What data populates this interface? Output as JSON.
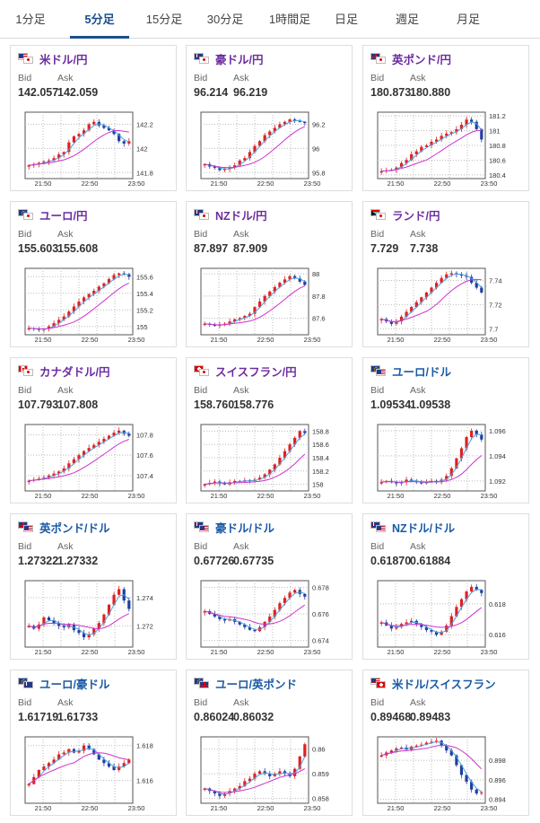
{
  "tabs": [
    "1分足",
    "5分足",
    "15分足",
    "30分足",
    "1時間足",
    "日足",
    "週足",
    "月足"
  ],
  "active_tab": 1,
  "labels": {
    "bid": "Bid",
    "ask": "Ask"
  },
  "colors": {
    "accent": "#1a4f8c",
    "jpy_pair": "#6b2ca0",
    "other_pair": "#1a5aa6",
    "up": "#e02020",
    "down": "#1f3f9f",
    "ma_short": "#4aa0e0",
    "ma_long": "#cc33cc"
  },
  "cards": [
    {
      "pair": "米ドル/円",
      "group": "jpy",
      "flags": [
        "US",
        "JP"
      ],
      "bid": "142.057",
      "ask": "142.059",
      "yticks": [
        "142.2",
        "142",
        "141.8"
      ],
      "ylim": [
        141.75,
        142.3
      ],
      "xticks": [
        "21:50",
        "22:50",
        "23:50"
      ],
      "closes": [
        141.86,
        141.87,
        141.88,
        141.89,
        141.9,
        141.92,
        141.95,
        141.97,
        142.05,
        142.1,
        142.12,
        142.15,
        142.2,
        142.22,
        142.19,
        142.17,
        142.15,
        142.12,
        142.06,
        142.04,
        142.06
      ]
    },
    {
      "pair": "豪ドル/円",
      "group": "jpy",
      "flags": [
        "AU",
        "JP"
      ],
      "bid": "96.214",
      "ask": "96.219",
      "yticks": [
        "96.2",
        "96",
        "95.8"
      ],
      "ylim": [
        95.75,
        96.3
      ],
      "xticks": [
        "21:50",
        "22:50",
        "23:50"
      ],
      "closes": [
        95.87,
        95.85,
        95.84,
        95.82,
        95.83,
        95.84,
        95.86,
        95.9,
        95.92,
        95.97,
        96.02,
        96.06,
        96.11,
        96.14,
        96.17,
        96.2,
        96.22,
        96.24,
        96.23,
        96.22,
        96.21
      ]
    },
    {
      "pair": "英ポンド/円",
      "group": "jpy",
      "flags": [
        "GB",
        "JP"
      ],
      "bid": "180.873",
      "ask": "180.880",
      "yticks": [
        "181.2",
        "181",
        "180.8",
        "180.6",
        "180.4"
      ],
      "ylim": [
        180.35,
        181.25
      ],
      "xticks": [
        "21:50",
        "22:50",
        "23:50"
      ],
      "closes": [
        180.45,
        180.46,
        180.47,
        180.5,
        180.56,
        180.6,
        180.68,
        180.72,
        180.78,
        180.8,
        180.85,
        180.88,
        180.93,
        180.96,
        180.98,
        181.02,
        181.08,
        181.15,
        181.12,
        181.02,
        180.88
      ]
    },
    {
      "pair": "ユーロ/円",
      "group": "jpy",
      "flags": [
        "EU",
        "JP"
      ],
      "bid": "155.603",
      "ask": "155.608",
      "yticks": [
        "155.6",
        "155.4",
        "155.2",
        "155"
      ],
      "ylim": [
        154.9,
        155.7
      ],
      "xticks": [
        "21:50",
        "22:50",
        "23:50"
      ],
      "closes": [
        154.98,
        154.97,
        154.96,
        154.97,
        155.0,
        155.04,
        155.08,
        155.12,
        155.18,
        155.24,
        155.3,
        155.35,
        155.39,
        155.43,
        155.48,
        155.52,
        155.57,
        155.62,
        155.64,
        155.63,
        155.6
      ]
    },
    {
      "pair": "NZドル/円",
      "group": "jpy",
      "flags": [
        "NZ",
        "JP"
      ],
      "bid": "87.897",
      "ask": "87.909",
      "yticks": [
        "88",
        "87.8",
        "87.6"
      ],
      "ylim": [
        87.45,
        88.05
      ],
      "xticks": [
        "21:50",
        "22:50",
        "23:50"
      ],
      "closes": [
        87.55,
        87.54,
        87.53,
        87.54,
        87.55,
        87.57,
        87.59,
        87.6,
        87.62,
        87.64,
        87.7,
        87.75,
        87.8,
        87.84,
        87.88,
        87.92,
        87.95,
        87.98,
        87.96,
        87.93,
        87.9
      ]
    },
    {
      "pair": "ランド/円",
      "group": "jpy",
      "flags": [
        "ZA",
        "JP"
      ],
      "bid": "7.729",
      "ask": "7.738",
      "yticks": [
        "7.74",
        "7.72",
        "7.7"
      ],
      "ylim": [
        7.695,
        7.75
      ],
      "xticks": [
        "21:50",
        "22:50",
        "23:50"
      ],
      "closes": [
        7.708,
        7.706,
        7.704,
        7.706,
        7.71,
        7.714,
        7.718,
        7.722,
        7.726,
        7.73,
        7.734,
        7.738,
        7.742,
        7.745,
        7.746,
        7.745,
        7.744,
        7.743,
        7.738,
        7.734,
        7.73
      ]
    },
    {
      "pair": "カナダドル/円",
      "group": "jpy",
      "flags": [
        "CA",
        "JP"
      ],
      "bid": "107.793",
      "ask": "107.808",
      "yticks": [
        "107.8",
        "107.6",
        "107.4"
      ],
      "ylim": [
        107.25,
        107.9
      ],
      "xticks": [
        "21:50",
        "22:50",
        "23:50"
      ],
      "closes": [
        107.35,
        107.36,
        107.37,
        107.38,
        107.4,
        107.42,
        107.44,
        107.47,
        107.52,
        107.56,
        107.6,
        107.64,
        107.67,
        107.7,
        107.73,
        107.76,
        107.79,
        107.82,
        107.84,
        107.81,
        107.79
      ]
    },
    {
      "pair": "スイスフラン/円",
      "group": "jpy",
      "flags": [
        "CH",
        "JP"
      ],
      "bid": "158.760",
      "ask": "158.776",
      "yticks": [
        "158.8",
        "158.6",
        "158.4",
        "158.2",
        "158"
      ],
      "ylim": [
        157.9,
        158.9
      ],
      "xticks": [
        "21:50",
        "22:50",
        "23:50"
      ],
      "closes": [
        158.0,
        158.02,
        158.04,
        158.02,
        158.0,
        158.03,
        158.05,
        158.04,
        158.06,
        158.05,
        158.07,
        158.1,
        158.15,
        158.22,
        158.3,
        158.4,
        158.5,
        158.6,
        158.7,
        158.8,
        158.77
      ]
    },
    {
      "pair": "ユーロ/ドル",
      "group": "oth",
      "flags": [
        "EU",
        "US"
      ],
      "bid": "1.09534",
      "ask": "1.09538",
      "yticks": [
        "1.096",
        "1.094",
        "1.092"
      ],
      "ylim": [
        1.0912,
        1.0965
      ],
      "xticks": [
        "21:50",
        "22:50",
        "23:50"
      ],
      "closes": [
        1.0919,
        1.092,
        1.0919,
        1.0918,
        1.0919,
        1.0921,
        1.092,
        1.0919,
        1.0918,
        1.0919,
        1.092,
        1.0919,
        1.0921,
        1.0924,
        1.093,
        1.0938,
        1.0946,
        1.0955,
        1.096,
        1.0957,
        1.0953
      ]
    },
    {
      "pair": "英ポンド/ドル",
      "group": "oth",
      "flags": [
        "GB",
        "US"
      ],
      "bid": "1.27322",
      "ask": "1.27332",
      "yticks": [
        "1.274",
        "1.272"
      ],
      "ylim": [
        1.2705,
        1.2752
      ],
      "xticks": [
        "21:50",
        "22:50",
        "23:50"
      ],
      "closes": [
        1.272,
        1.2718,
        1.2721,
        1.2726,
        1.2724,
        1.2722,
        1.272,
        1.2719,
        1.2721,
        1.2717,
        1.2715,
        1.2712,
        1.2714,
        1.2718,
        1.2722,
        1.2728,
        1.2735,
        1.2742,
        1.2746,
        1.2738,
        1.2732
      ]
    },
    {
      "pair": "豪ドル/ドル",
      "group": "oth",
      "flags": [
        "AU",
        "US"
      ],
      "bid": "0.67726",
      "ask": "0.67735",
      "yticks": [
        "0.678",
        "0.676",
        "0.674"
      ],
      "ylim": [
        0.6735,
        0.6785
      ],
      "xticks": [
        "21:50",
        "22:50",
        "23:50"
      ],
      "closes": [
        0.6762,
        0.676,
        0.6758,
        0.6756,
        0.6755,
        0.6756,
        0.6754,
        0.6752,
        0.675,
        0.6748,
        0.6747,
        0.675,
        0.6754,
        0.6758,
        0.6763,
        0.6768,
        0.6772,
        0.6776,
        0.6778,
        0.6775,
        0.6773
      ]
    },
    {
      "pair": "NZドル/ドル",
      "group": "oth",
      "flags": [
        "NZ",
        "US"
      ],
      "bid": "0.61870",
      "ask": "0.61884",
      "yticks": [
        "0.618",
        "0.616"
      ],
      "ylim": [
        0.6152,
        0.6195
      ],
      "xticks": [
        "21:50",
        "22:50",
        "23:50"
      ],
      "closes": [
        0.6168,
        0.6166,
        0.6164,
        0.6165,
        0.6167,
        0.6168,
        0.6169,
        0.6167,
        0.6165,
        0.6163,
        0.6162,
        0.616,
        0.6162,
        0.6166,
        0.6172,
        0.6178,
        0.6183,
        0.6188,
        0.6191,
        0.6189,
        0.6187
      ]
    },
    {
      "pair": "ユーロ/豪ドル",
      "group": "oth",
      "flags": [
        "EU",
        "AU"
      ],
      "bid": "1.61719",
      "ask": "1.61733",
      "yticks": [
        "1.618",
        "1.616"
      ],
      "ylim": [
        1.6147,
        1.6185
      ],
      "xticks": [
        "21:50",
        "22:50",
        "23:50"
      ],
      "closes": [
        1.6158,
        1.6162,
        1.6166,
        1.6168,
        1.617,
        1.6172,
        1.6175,
        1.6176,
        1.6178,
        1.6176,
        1.6177,
        1.618,
        1.6178,
        1.6175,
        1.6172,
        1.617,
        1.6168,
        1.6166,
        1.6168,
        1.617,
        1.6172
      ]
    },
    {
      "pair": "ユーロ/英ポンド",
      "group": "oth",
      "flags": [
        "EU",
        "GB"
      ],
      "bid": "0.86024",
      "ask": "0.86032",
      "yticks": [
        "0.86",
        "0.859",
        "0.858"
      ],
      "ylim": [
        0.8578,
        0.8605
      ],
      "xticks": [
        "21:50",
        "22:50",
        "23:50"
      ],
      "closes": [
        0.8584,
        0.8583,
        0.8582,
        0.8581,
        0.8582,
        0.8583,
        0.8584,
        0.8585,
        0.8587,
        0.8588,
        0.859,
        0.8591,
        0.859,
        0.8589,
        0.859,
        0.8591,
        0.859,
        0.8589,
        0.8592,
        0.8597,
        0.8602
      ]
    },
    {
      "pair": "米ドル/スイスフラン",
      "group": "oth",
      "flags": [
        "US",
        "CH"
      ],
      "bid": "0.89468",
      "ask": "0.89483",
      "yticks": [
        "0.898",
        "0.896",
        "0.894"
      ],
      "ylim": [
        0.8936,
        0.9004
      ],
      "xticks": [
        "21:50",
        "22:50",
        "23:50"
      ],
      "closes": [
        0.8985,
        0.8988,
        0.899,
        0.8992,
        0.8993,
        0.8991,
        0.8994,
        0.8995,
        0.8996,
        0.8998,
        0.8999,
        0.9,
        0.8995,
        0.899,
        0.8985,
        0.8975,
        0.8965,
        0.8958,
        0.895,
        0.8946,
        0.8947
      ]
    }
  ]
}
